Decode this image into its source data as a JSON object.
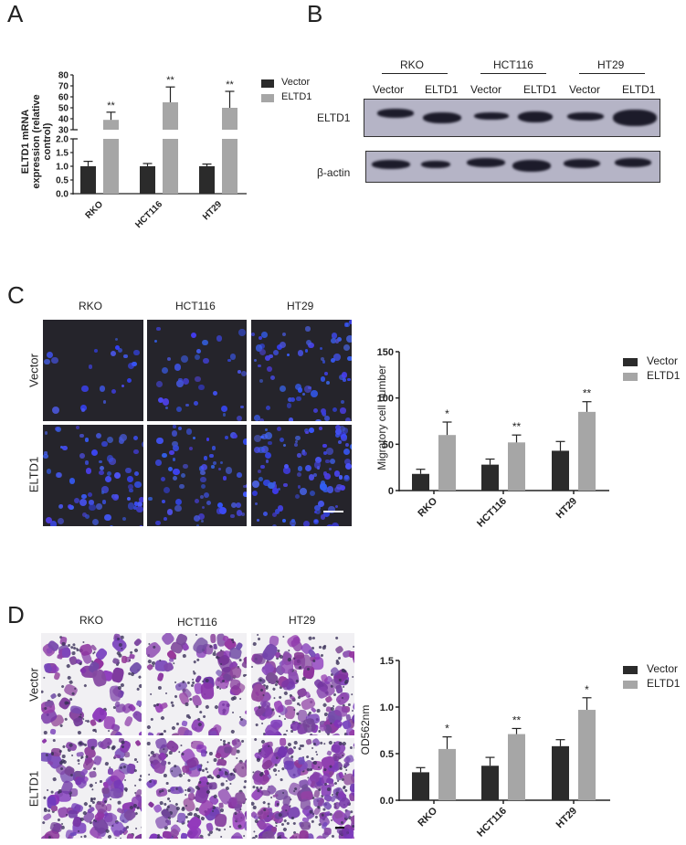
{
  "panels": {
    "A": {
      "letter": "A"
    },
    "B": {
      "letter": "B"
    },
    "C": {
      "letter": "C"
    },
    "D": {
      "letter": "D"
    }
  },
  "legend": {
    "vector": "Vector",
    "eltd1": "ELTD1",
    "vector_color": "#2b2b2b",
    "eltd1_color": "#a6a6a6"
  },
  "western_blot": {
    "groups": [
      "RKO",
      "HCT116",
      "HT29"
    ],
    "lanes": [
      "Vector",
      "ELTD1",
      "Vector",
      "ELTD1",
      "Vector",
      "ELTD1"
    ],
    "rows": [
      "ELTD1",
      "β-actin"
    ]
  },
  "micrographs_C": {
    "columns": [
      "RKO",
      "HCT116",
      "HT29"
    ],
    "rows": [
      "Vector",
      "ELTD1"
    ]
  },
  "micrographs_D": {
    "columns": [
      "RKO",
      "HCT116",
      "HT29"
    ],
    "rows": [
      "Vector",
      "ELTD1"
    ]
  },
  "chart_data": [
    {
      "id": "A",
      "type": "bar",
      "title": "",
      "xlabel": "",
      "ylabel": "ELTD1 mRNA expression (relative control)",
      "categories": [
        "RKO",
        "HCT116",
        "HT29"
      ],
      "broken_axis": {
        "lower": [
          0.0,
          2.0
        ],
        "upper": [
          30,
          80
        ]
      },
      "yticks_lower": [
        "0.0",
        "0.5",
        "1.0",
        "1.5",
        "2.0"
      ],
      "yticks_upper": [
        "30",
        "40",
        "50",
        "60",
        "70",
        "80"
      ],
      "series": [
        {
          "name": "Vector",
          "values": [
            1.0,
            1.0,
            1.0
          ],
          "errors": [
            0.18,
            0.1,
            0.08
          ]
        },
        {
          "name": "ELTD1",
          "values": [
            39,
            55,
            50
          ],
          "errors": [
            7,
            14,
            15
          ]
        }
      ],
      "significance": [
        "**",
        "**",
        "**"
      ],
      "legend_position": "right"
    },
    {
      "id": "C",
      "type": "bar",
      "title": "",
      "xlabel": "",
      "ylabel": "Migratory cell number",
      "categories": [
        "RKO",
        "HCT116",
        "HT29"
      ],
      "ylim": [
        0,
        150
      ],
      "yticks": [
        "0",
        "50",
        "100",
        "150"
      ],
      "series": [
        {
          "name": "Vector",
          "values": [
            18,
            28,
            43
          ],
          "errors": [
            5,
            6,
            10
          ]
        },
        {
          "name": "ELTD1",
          "values": [
            60,
            52,
            85
          ],
          "errors": [
            14,
            8,
            11
          ]
        }
      ],
      "significance": [
        "*",
        "**",
        "**"
      ],
      "legend_position": "right"
    },
    {
      "id": "D",
      "type": "bar",
      "title": "",
      "xlabel": "",
      "ylabel": "OD562nm",
      "categories": [
        "RKO",
        "HCT116",
        "HT29"
      ],
      "ylim": [
        0,
        1.5
      ],
      "yticks": [
        "0.0",
        "0.5",
        "1.0",
        "1.5"
      ],
      "series": [
        {
          "name": "Vector",
          "values": [
            0.3,
            0.37,
            0.58
          ],
          "errors": [
            0.05,
            0.09,
            0.07
          ]
        },
        {
          "name": "ELTD1",
          "values": [
            0.55,
            0.71,
            0.97
          ],
          "errors": [
            0.13,
            0.06,
            0.13
          ]
        }
      ],
      "significance": [
        "*",
        "**",
        "*"
      ],
      "legend_position": "right"
    }
  ]
}
